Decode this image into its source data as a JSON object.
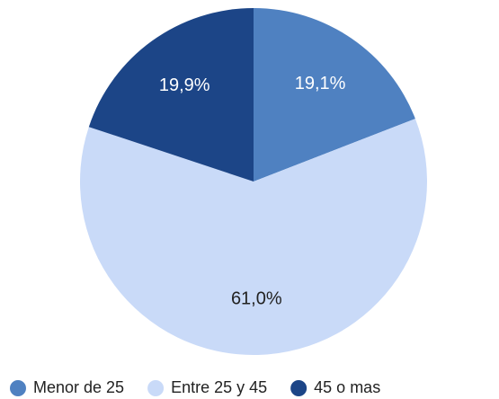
{
  "chart_data": {
    "type": "pie",
    "categories": [
      "Menor de 25",
      "Entre 25 y 45",
      "45 o mas"
    ],
    "values": [
      19.1,
      61.0,
      19.9
    ],
    "value_labels": [
      "19,1%",
      "61,0%",
      "19,9%"
    ],
    "colors": [
      "#4f81c1",
      "#c9daf8",
      "#1c4587"
    ]
  }
}
